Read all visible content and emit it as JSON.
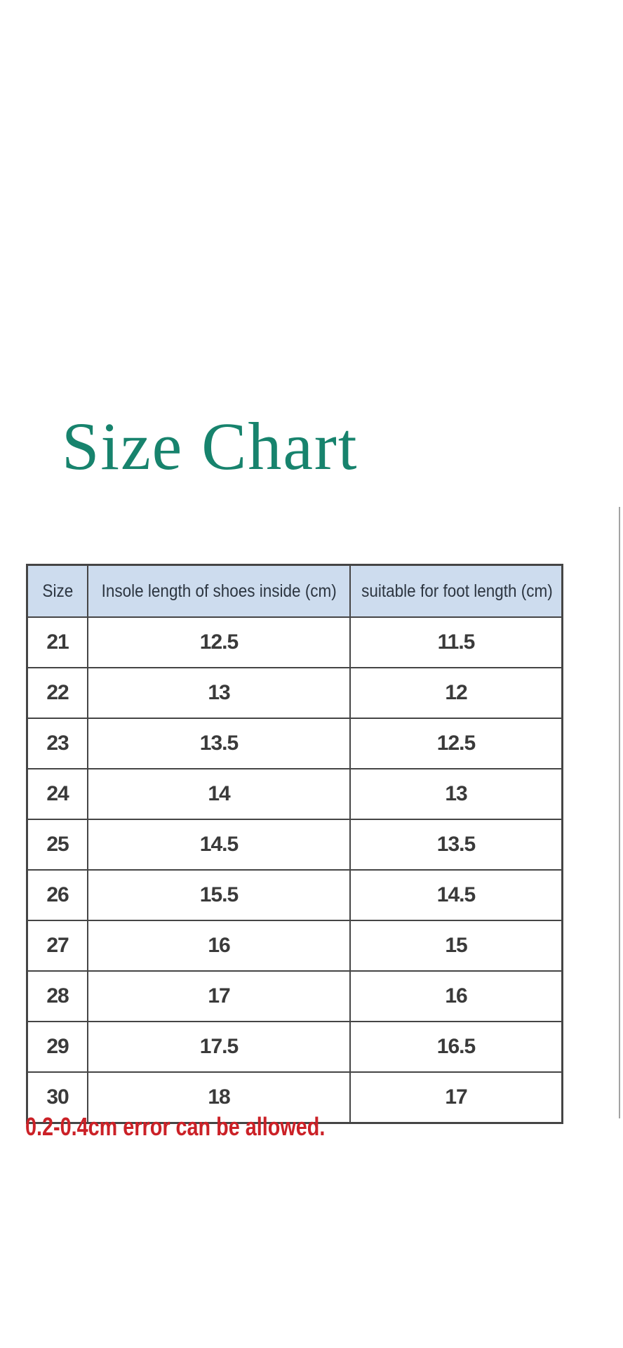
{
  "title": {
    "text": "Size Chart"
  },
  "note": {
    "text": "0.2-0.4cm error can be allowed."
  },
  "colors": {
    "title_color": "#17836d",
    "header_bg": "#cddcee",
    "border_color": "#454545",
    "note_color": "#cb2127",
    "edge_line_color": "#a3a3a3"
  },
  "chart_data": {
    "type": "table",
    "title": "Size Chart",
    "columns": [
      "Size",
      "Insole length of shoes inside (cm)",
      "suitable for foot length (cm)"
    ],
    "rows": [
      [
        "21",
        "12.5",
        "11.5"
      ],
      [
        "22",
        "13",
        "12"
      ],
      [
        "23",
        "13.5",
        "12.5"
      ],
      [
        "24",
        "14",
        "13"
      ],
      [
        "25",
        "14.5",
        "13.5"
      ],
      [
        "26",
        "15.5",
        "14.5"
      ],
      [
        "27",
        "16",
        "15"
      ],
      [
        "28",
        "17",
        "16"
      ],
      [
        "29",
        "17.5",
        "16.5"
      ],
      [
        "30",
        "18",
        "17"
      ]
    ],
    "footnote": "0.2-0.4cm error can be allowed."
  }
}
